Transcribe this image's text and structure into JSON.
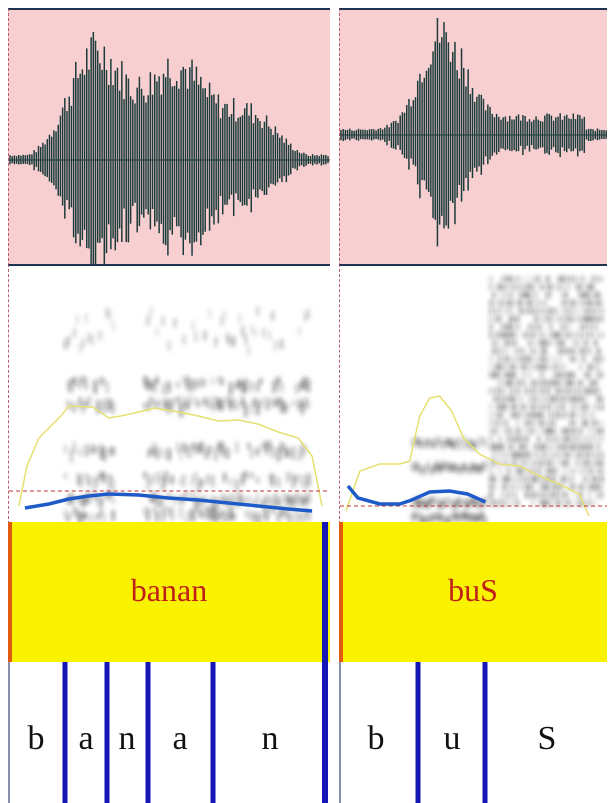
{
  "left": {
    "word": "banan",
    "phones": [
      "b",
      "a",
      "n",
      "a",
      "n"
    ]
  },
  "right": {
    "word": "buS",
    "phones": [
      "b",
      "u",
      "S"
    ]
  },
  "colors": {
    "waveform_bg": "#f8cfd1",
    "waveform": "#1b3b3b",
    "word_tier_bg": "#f9f201",
    "word_text": "#c0201a",
    "boundary": "#1616b4",
    "pitch_contour": "#1e5bc8",
    "intensity_contour": "#e6e070",
    "onset_marker": "#e05a10"
  }
}
